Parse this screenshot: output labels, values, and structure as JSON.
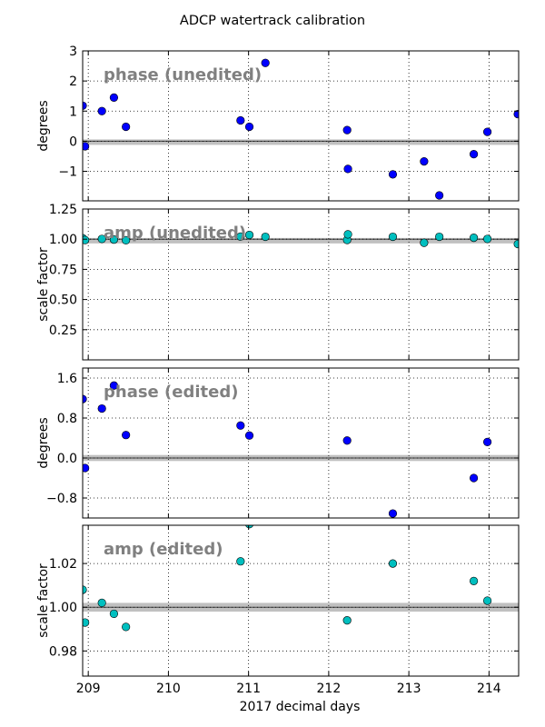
{
  "figure": {
    "title": "ADCP watertrack calibration",
    "xlabel": "2017 decimal days",
    "xlim": [
      208.93,
      214.37
    ],
    "xticks": [
      209,
      210,
      211,
      212,
      213,
      214
    ],
    "xtick_labels": [
      "209",
      "210",
      "211",
      "212",
      "213",
      "214"
    ]
  },
  "colors": {
    "phase_marker": "#0000ff",
    "amp_marker": "#00bfbf",
    "marker_edge": "#000000",
    "reference_band": "#c0c0c0",
    "reference_line": "#404040",
    "panel_title": "#808080",
    "grid": "#000000"
  },
  "chart_data": [
    {
      "type": "scatter",
      "title": "phase (unedited)",
      "ylabel": "degrees",
      "ylim": [
        -1.98,
        3.0
      ],
      "yticks": [
        -1,
        0,
        1,
        2,
        3
      ],
      "ytick_labels": [
        "−1",
        "0",
        "1",
        "2",
        "3"
      ],
      "reference": 0,
      "reference_band": [
        -0.06,
        0.06
      ],
      "grid": true,
      "marker": "phase",
      "points": [
        {
          "x": 208.93,
          "y": 1.18
        },
        {
          "x": 208.96,
          "y": -0.17
        },
        {
          "x": 209.17,
          "y": 1.0
        },
        {
          "x": 209.32,
          "y": 1.45
        },
        {
          "x": 209.47,
          "y": 0.48
        },
        {
          "x": 210.9,
          "y": 0.69
        },
        {
          "x": 211.01,
          "y": 0.48
        },
        {
          "x": 211.21,
          "y": 2.6
        },
        {
          "x": 212.23,
          "y": 0.37
        },
        {
          "x": 212.24,
          "y": -0.92
        },
        {
          "x": 212.8,
          "y": -1.1
        },
        {
          "x": 213.19,
          "y": -0.67
        },
        {
          "x": 213.38,
          "y": -1.8
        },
        {
          "x": 213.81,
          "y": -0.43
        },
        {
          "x": 213.98,
          "y": 0.31
        },
        {
          "x": 214.36,
          "y": 0.9
        }
      ]
    },
    {
      "type": "scatter",
      "title": "amp (unedited)",
      "ylabel": "scale factor",
      "ylim": [
        0.0,
        1.25
      ],
      "yticks": [
        0.25,
        0.5,
        0.75,
        1.0,
        1.25
      ],
      "ytick_labels": [
        "0.25",
        "0.50",
        "0.75",
        "1.00",
        "1.25"
      ],
      "reference": 1.0,
      "reference_band": [
        0.99,
        1.01
      ],
      "grid": true,
      "marker": "amp",
      "points": [
        {
          "x": 208.93,
          "y": 1.008
        },
        {
          "x": 208.96,
          "y": 0.993
        },
        {
          "x": 209.17,
          "y": 1.002
        },
        {
          "x": 209.32,
          "y": 0.997
        },
        {
          "x": 209.47,
          "y": 0.991
        },
        {
          "x": 210.9,
          "y": 1.021
        },
        {
          "x": 211.01,
          "y": 1.035
        },
        {
          "x": 211.21,
          "y": 1.02
        },
        {
          "x": 212.23,
          "y": 0.994
        },
        {
          "x": 212.24,
          "y": 1.04
        },
        {
          "x": 212.8,
          "y": 1.02
        },
        {
          "x": 213.19,
          "y": 0.97
        },
        {
          "x": 213.38,
          "y": 1.02
        },
        {
          "x": 213.81,
          "y": 1.012
        },
        {
          "x": 213.98,
          "y": 1.002
        },
        {
          "x": 214.36,
          "y": 0.96
        }
      ]
    },
    {
      "type": "scatter",
      "title": "phase (edited)",
      "ylabel": "degrees",
      "ylim": [
        -1.2,
        1.8
      ],
      "yticks": [
        -0.8,
        0.0,
        0.8,
        1.6
      ],
      "ytick_labels": [
        "−0.8",
        "0.0",
        "0.8",
        "1.6"
      ],
      "reference": 0,
      "reference_band": [
        -0.06,
        0.06
      ],
      "grid": true,
      "marker": "phase",
      "points": [
        {
          "x": 208.93,
          "y": 1.18
        },
        {
          "x": 208.96,
          "y": -0.2
        },
        {
          "x": 209.17,
          "y": 0.99
        },
        {
          "x": 209.32,
          "y": 1.45
        },
        {
          "x": 209.47,
          "y": 0.46
        },
        {
          "x": 210.9,
          "y": 0.65
        },
        {
          "x": 211.01,
          "y": 0.45
        },
        {
          "x": 212.23,
          "y": 0.35
        },
        {
          "x": 212.8,
          "y": -1.11
        },
        {
          "x": 213.81,
          "y": -0.4
        },
        {
          "x": 213.98,
          "y": 0.32
        }
      ]
    },
    {
      "type": "scatter",
      "title": "amp (edited)",
      "ylabel": "scale factor",
      "ylim": [
        0.9685,
        1.0375
      ],
      "yticks": [
        0.98,
        1.0,
        1.02
      ],
      "ytick_labels": [
        "0.98",
        "1.00",
        "1.02"
      ],
      "reference": 1.0,
      "reference_band": [
        0.998,
        1.002
      ],
      "grid": true,
      "marker": "amp",
      "points": [
        {
          "x": 208.93,
          "y": 1.008
        },
        {
          "x": 208.96,
          "y": 0.993
        },
        {
          "x": 209.17,
          "y": 1.002
        },
        {
          "x": 209.32,
          "y": 0.997
        },
        {
          "x": 209.47,
          "y": 0.991
        },
        {
          "x": 210.9,
          "y": 1.021
        },
        {
          "x": 211.01,
          "y": 1.038
        },
        {
          "x": 212.23,
          "y": 0.994
        },
        {
          "x": 212.8,
          "y": 1.02
        },
        {
          "x": 213.81,
          "y": 1.012
        },
        {
          "x": 213.98,
          "y": 1.003
        }
      ]
    }
  ]
}
